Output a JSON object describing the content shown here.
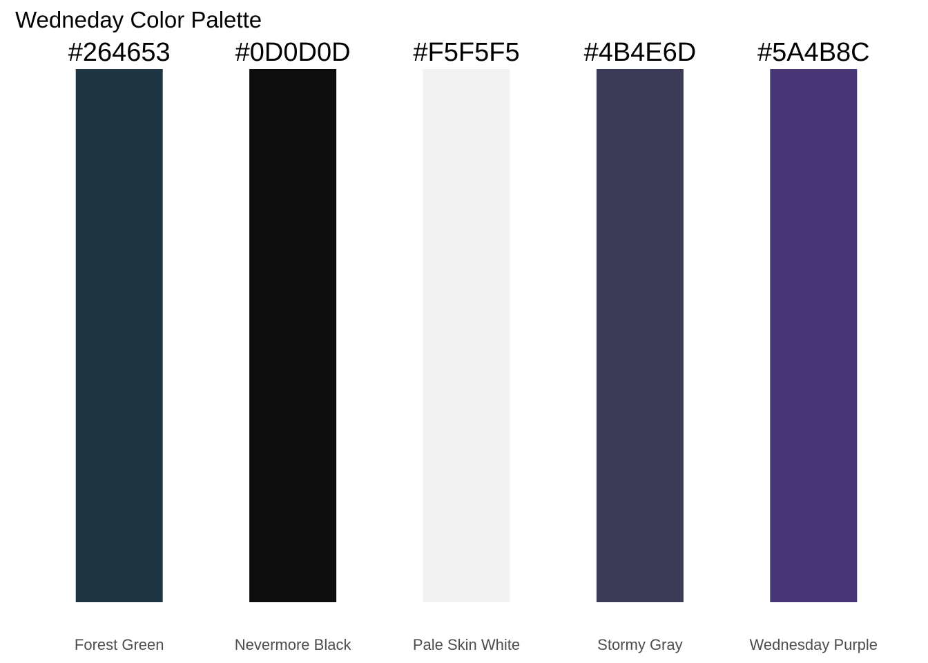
{
  "chart_data": {
    "type": "bar",
    "title": "Wedneday Color Palette",
    "categories": [
      "Forest Green",
      "Nevermore Black",
      "Pale Skin White",
      "Stormy Gray",
      "Wednesday Purple"
    ],
    "hex_labels": [
      "#264653",
      "#0D0D0D",
      "#F5F5F5",
      "#4B4E6D",
      "#5A4B8C"
    ],
    "bar_colors": [
      "#1f3541",
      "#0d0d0d",
      "#f2f2f2",
      "#3b3b58",
      "#483776"
    ],
    "values": [
      1,
      1,
      1,
      1,
      1
    ],
    "xlabel": "",
    "ylabel": "",
    "ylim": [
      0,
      1
    ],
    "grid": false,
    "legend": "none"
  }
}
